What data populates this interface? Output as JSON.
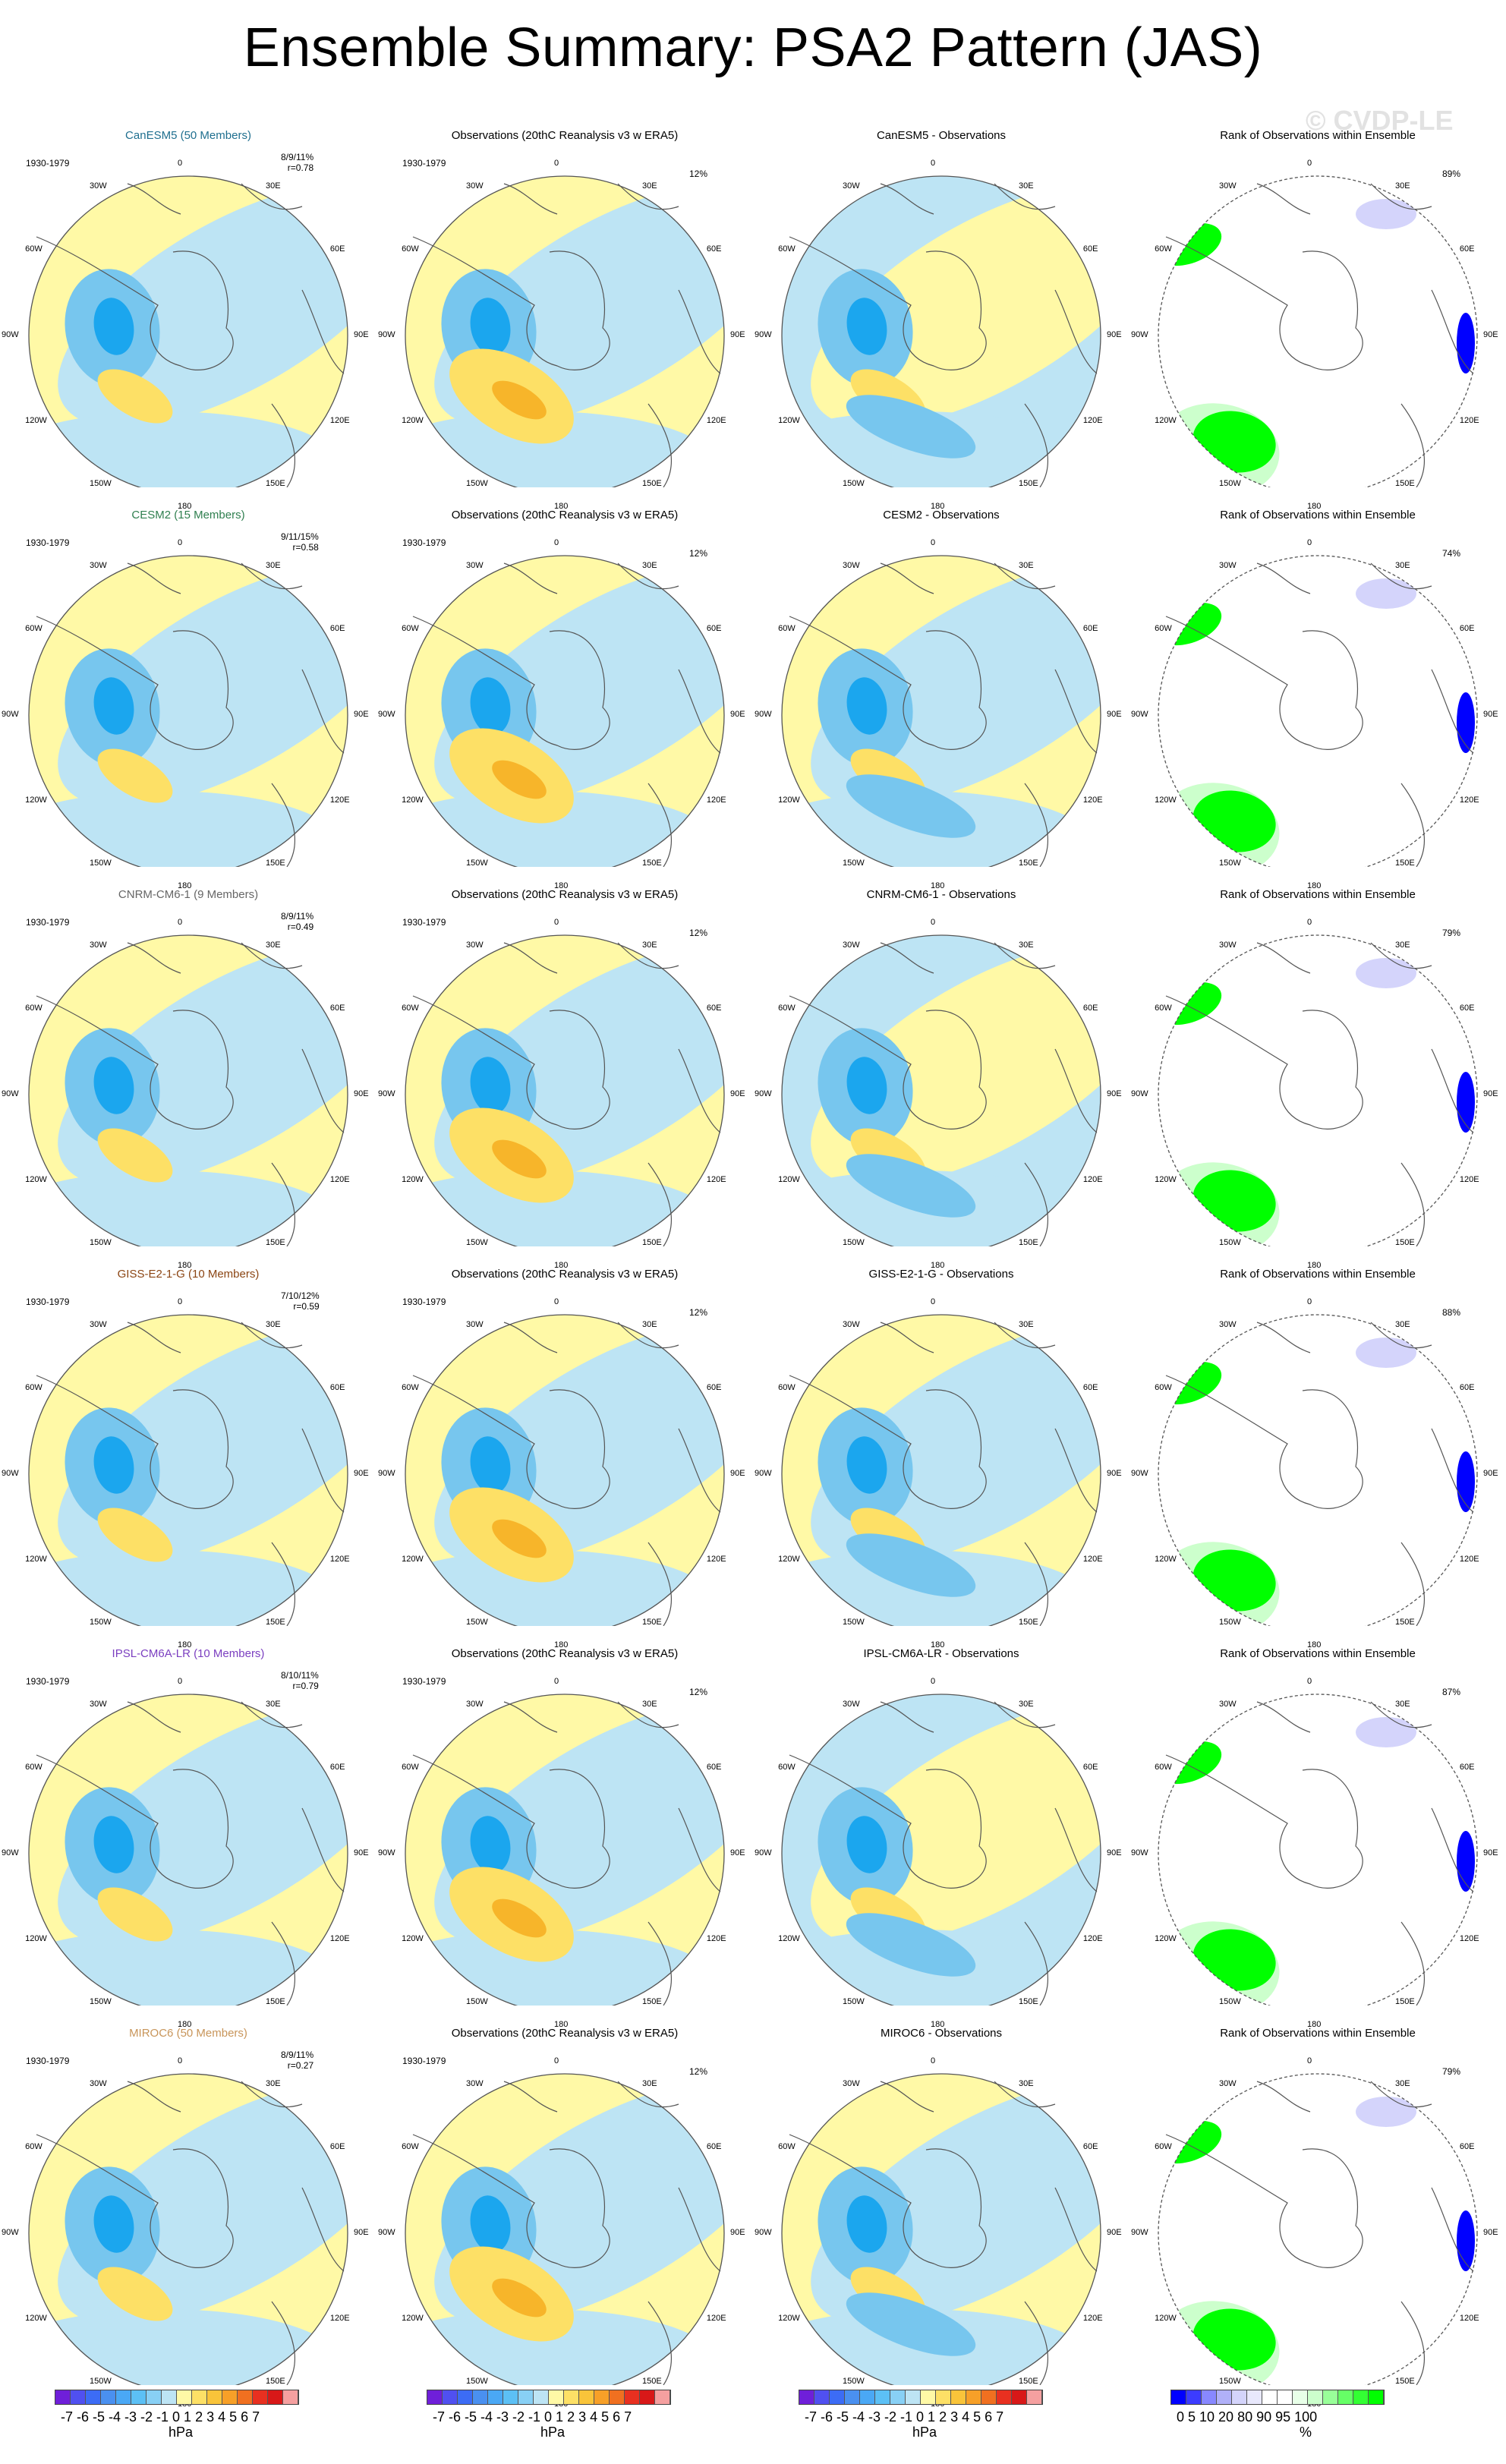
{
  "title": "Ensemble Summary: PSA2 Pattern (JAS)",
  "watermark": "© CVDP-LE",
  "obs_title": "Observations (20thC Reanalysis v3 w ERA5)",
  "rank_title": "Rank of Observations within Ensemble",
  "period": "1930-1979",
  "obs_pct": "12%",
  "lon_labels": [
    "0",
    "30E",
    "60E",
    "90E",
    "120E",
    "150E",
    "180",
    "150W",
    "120W",
    "90W",
    "60W",
    "30W"
  ],
  "colors": {
    "lt_blue": "#bde4f4",
    "yellow": "#fff9a6",
    "blue1": "#77c6ee",
    "blue2": "#1ba6ee",
    "orange1": "#fde066",
    "orange2": "#f7b52a",
    "green": "#00ff00",
    "pale_green": "#ccffcc",
    "lavender": "#d4d4fb",
    "dk_blue": "#0000ff"
  },
  "models": [
    {
      "name": "CanESM5 (50 Members)",
      "short": "CanESM5",
      "color": "#1f6f8f",
      "stats": "8/9/11%",
      "r": "r=0.78",
      "rank_pct": "89%"
    },
    {
      "name": "CESM2 (15 Members)",
      "short": "CESM2",
      "color": "#2f7f4f",
      "stats": "9/11/15%",
      "r": "r=0.58",
      "rank_pct": "74%"
    },
    {
      "name": "CNRM-CM6-1 (9 Members)",
      "short": "CNRM-CM6-1",
      "color": "#666666",
      "stats": "8/9/11%",
      "r": "r=0.49",
      "rank_pct": "79%"
    },
    {
      "name": "GISS-E2-1-G (10 Members)",
      "short": "GISS-E2-1-G",
      "color": "#8b4513",
      "stats": "7/10/12%",
      "r": "r=0.59",
      "rank_pct": "88%"
    },
    {
      "name": "IPSL-CM6A-LR (10 Members)",
      "short": "IPSL-CM6A-LR",
      "color": "#7b3fc0",
      "stats": "8/10/11%",
      "r": "r=0.79",
      "rank_pct": "87%"
    },
    {
      "name": "MIROC6 (50 Members)",
      "short": "MIROC6",
      "color": "#c8955a",
      "stats": "8/9/11%",
      "r": "r=0.27",
      "rank_pct": "79%"
    }
  ],
  "diff_suffix": " - Observations",
  "colorbar_hpa": {
    "ticks": "-7 -6 -5 -4 -3 -2 -1 0  1  2  3  4  5  6  7",
    "unit": "hPa",
    "colors": [
      "#6f1fd9",
      "#5050f0",
      "#3c6cf5",
      "#4a90f0",
      "#4aa8f5",
      "#5cc0f5",
      "#88d0f5",
      "#bde4f4",
      "#fff9a6",
      "#fde066",
      "#f9c43a",
      "#f7a028",
      "#f07020",
      "#e83020",
      "#d81818",
      "#f5a0a0"
    ]
  },
  "colorbar_rank": {
    "ticks": "0   5  10      20      80      90  95 100",
    "unit": "%",
    "colors": [
      "#0000ff",
      "#3c3cff",
      "#8888ff",
      "#b0b0f8",
      "#d4d4fb",
      "#e8e8fc",
      "#ffffff",
      "#ffffff",
      "#e8ffe8",
      "#ccffcc",
      "#99ff99",
      "#66ff66",
      "#33ff33",
      "#00ff00"
    ]
  }
}
